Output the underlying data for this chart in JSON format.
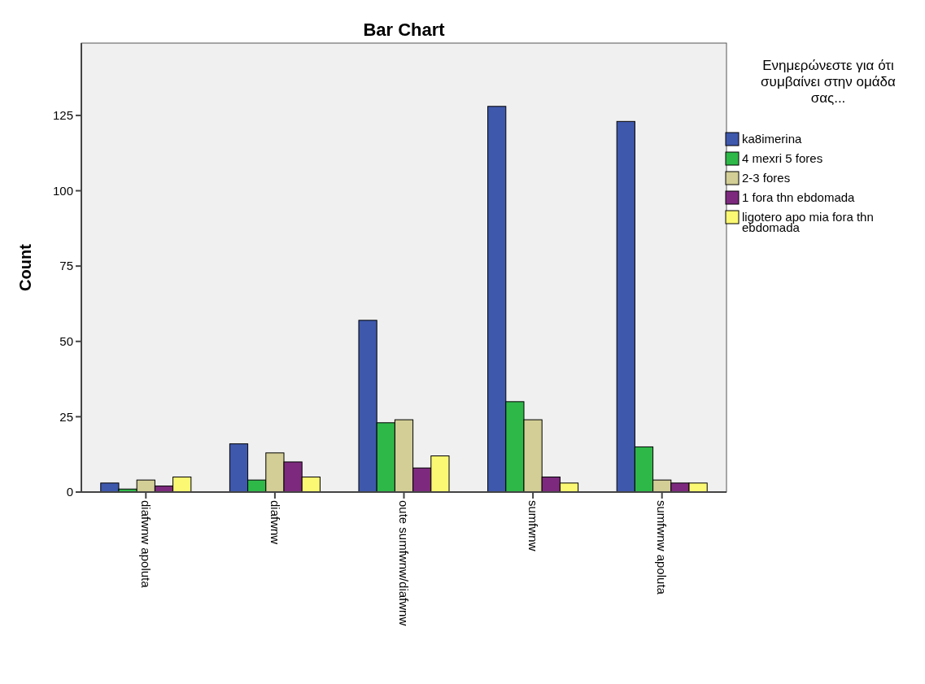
{
  "chart_data": {
    "type": "bar",
    "title": "Bar Chart",
    "ylabel": "Count",
    "legend_title": "Ενημερώνεστε για ότι συμβαίνει στην ομάδα σας...",
    "categories": [
      "diafwnw apoluta",
      "diafwnw",
      "oute sumfwnw/diafwnw",
      "sumfwnw",
      "sumfwnw apoluta"
    ],
    "series": [
      {
        "name": "ka8imerina",
        "color": "#3e58ac",
        "values": [
          3,
          16,
          57,
          128,
          123
        ]
      },
      {
        "name": "4 mexri 5 fores",
        "color": "#2eb848",
        "values": [
          1,
          4,
          23,
          30,
          15
        ]
      },
      {
        "name": "2-3 fores",
        "color": "#d2ce96",
        "values": [
          4,
          13,
          24,
          24,
          4
        ]
      },
      {
        "name": "1 fora thn ebdomada",
        "color": "#7d2a7e",
        "values": [
          2,
          10,
          8,
          5,
          3
        ]
      },
      {
        "name": "ligotero apo mia fora thn ebdomada",
        "color": "#fbf873",
        "values": [
          5,
          5,
          12,
          3,
          3
        ]
      }
    ],
    "ylim": [
      0,
      149
    ],
    "yticks": [
      0,
      25,
      50,
      75,
      100,
      125
    ],
    "grid": false,
    "legend": "top right"
  }
}
